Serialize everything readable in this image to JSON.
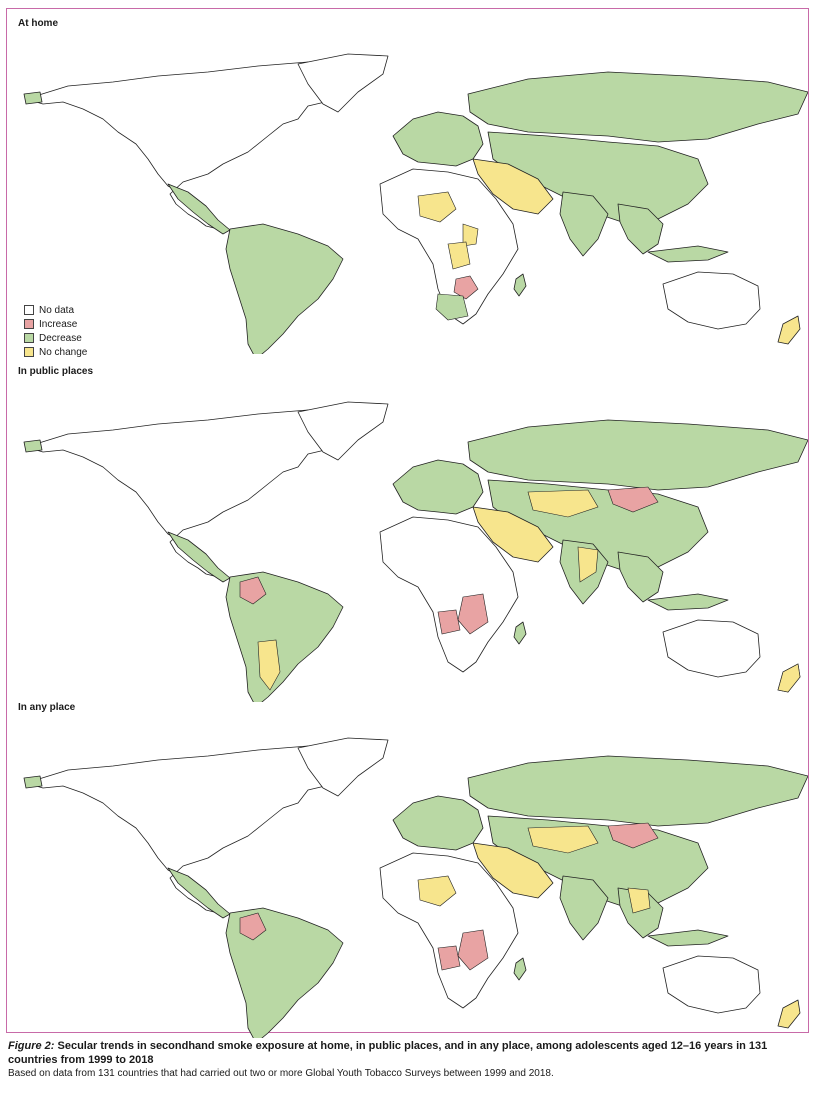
{
  "panels": [
    {
      "title": "At home"
    },
    {
      "title": "In public places"
    },
    {
      "title": "In any place"
    }
  ],
  "legend": [
    {
      "label": "No data",
      "color": "#ffffff"
    },
    {
      "label": "Increase",
      "color": "#e8a3a3"
    },
    {
      "label": "Decrease",
      "color": "#b9d8a4"
    },
    {
      "label": "No change",
      "color": "#f7e58d"
    }
  ],
  "caption": {
    "figure_label": "Figure 2:",
    "title": "Secular trends in secondhand smoke exposure at home, in public places, and in any place, among adolescents aged 12–16 years in 131 countries from 1999 to 2018",
    "note": "Based on data from 131 countries that had carried out two or more Global Youth Tobacco Surveys between 1999 and 2018."
  }
}
